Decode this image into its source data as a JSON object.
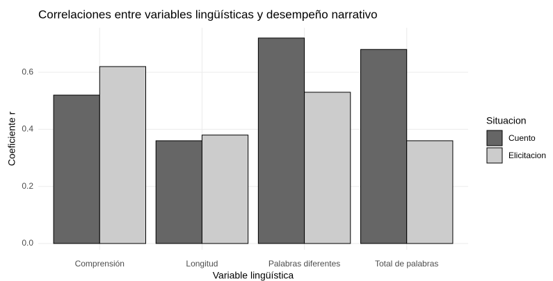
{
  "chart_data": {
    "type": "bar",
    "title": "Correlaciones entre variables lingüísticas y desempeño narrativo",
    "x_label": "Variable lingüística",
    "y_label": "Coeficiente r",
    "legend_title": "Situacion",
    "legend_position": "right",
    "categories": [
      "Comprensión",
      "Longitud",
      "Palabras diferentes",
      "Total de palabras"
    ],
    "series": [
      {
        "name": "Cuento",
        "color": "#666666",
        "values": [
          0.52,
          0.36,
          0.72,
          0.68
        ]
      },
      {
        "name": "Elicitacion",
        "color": "#cccccc",
        "values": [
          0.62,
          0.38,
          0.53,
          0.36
        ]
      }
    ],
    "ylim": [
      -0.022,
      0.756
    ],
    "yticks": [
      {
        "value": 0,
        "label": "0.0"
      },
      0.2,
      0.4,
      0.6
    ],
    "grid": true
  }
}
